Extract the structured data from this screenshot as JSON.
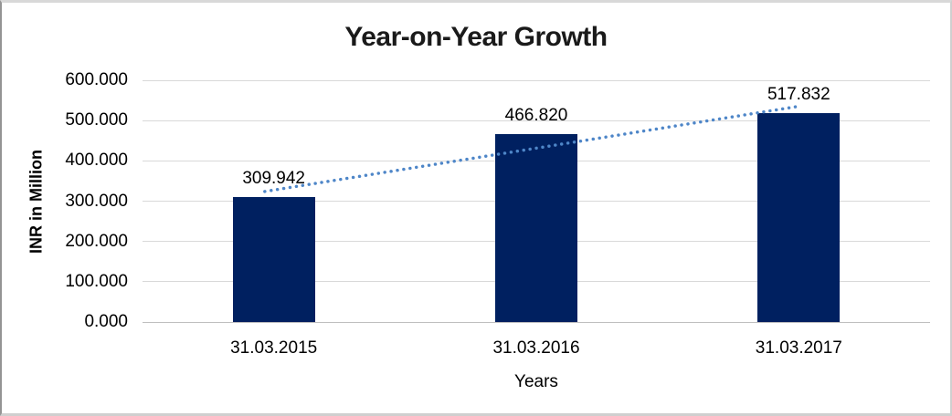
{
  "chart": {
    "title": "Year-on-Year Growth",
    "x_axis_title": "Years",
    "y_axis_title": "INR in Million"
  },
  "chart_data": {
    "type": "bar",
    "title": "Year-on-Year Growth",
    "xlabel": "Years",
    "ylabel": "INR in Million",
    "categories": [
      "31.03.2015",
      "31.03.2016",
      "31.03.2017"
    ],
    "values": [
      309.942,
      466.82,
      517.832
    ],
    "data_labels": [
      "309.942",
      "466.820",
      "517.832"
    ],
    "ylim": [
      0,
      600
    ],
    "y_tick_step": 100,
    "y_tick_labels": [
      "0.000",
      "100.000",
      "200.000",
      "300.000",
      "400.000",
      "500.000",
      "600.000"
    ],
    "grid": true,
    "legend": false,
    "legend_position": "none",
    "bar_color": "#002060",
    "gridline_color": "#d9d9d9",
    "trendline": {
      "type": "linear",
      "style": "dotted",
      "color": "#4e86c8"
    }
  }
}
